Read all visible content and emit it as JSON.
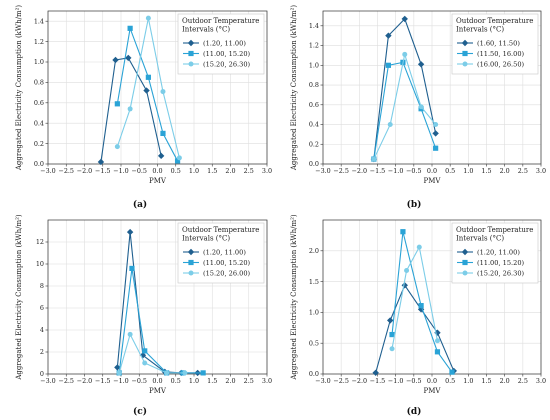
{
  "chart_data": [
    {
      "type": "line",
      "caption": "(a)",
      "xlabel": "PMV",
      "ylabel": "Aggregated Electricity Consumption (kWh/m²)",
      "xlim": [
        -3.0,
        3.0
      ],
      "ylim": [
        0,
        1.5
      ],
      "x_ticks": [
        "−3.0",
        "−2.5",
        "−2.0",
        "−1.5",
        "−1.0",
        "−0.5",
        "0.0",
        "0.5",
        "1.0",
        "1.5",
        "2.0",
        "2.5",
        "3.0"
      ],
      "y_ticks": [
        "0.0",
        "0.2",
        "0.4",
        "0.6",
        "0.8",
        "1.0",
        "1.2",
        "1.4"
      ],
      "grid": true,
      "legend_title": "Outdoor Temperature Intervals (°C)",
      "legend_title_lines": [
        "Outdoor Temperature",
        "Intervals (°C)"
      ],
      "legend_position": "top-right",
      "series": [
        {
          "name": "(1.20, 11.00)",
          "color": "#1f5f8f",
          "marker": "diamond",
          "x": [
            -1.55,
            -1.15,
            -0.8,
            -0.3,
            0.1
          ],
          "y": [
            0.02,
            1.02,
            1.04,
            0.72,
            0.08
          ]
        },
        {
          "name": "(11.00, 15.20)",
          "color": "#2aa3d6",
          "marker": "square",
          "x": [
            -1.1,
            -0.75,
            -0.25,
            0.15,
            0.55
          ],
          "y": [
            0.59,
            1.33,
            0.85,
            0.3,
            0.03
          ]
        },
        {
          "name": "(15.20, 26.30)",
          "color": "#7ccde8",
          "marker": "circle",
          "x": [
            -1.1,
            -0.75,
            -0.25,
            0.15,
            0.6
          ],
          "y": [
            0.17,
            0.54,
            1.43,
            0.71,
            0.06
          ]
        }
      ]
    },
    {
      "type": "line",
      "caption": "(b)",
      "xlabel": "PMV",
      "ylabel": "Aggregated Electricity Consumption (kWh/m²)",
      "xlim": [
        -3.0,
        3.0
      ],
      "ylim": [
        0,
        1.55
      ],
      "x_ticks": [
        "−3.0",
        "−2.5",
        "−2.0",
        "−1.5",
        "−1.0",
        "−0.5",
        "0.0",
        "0.5",
        "1.0",
        "1.5",
        "2.0",
        "2.5",
        "3.0"
      ],
      "y_ticks": [
        "0.0",
        "0.2",
        "0.4",
        "0.6",
        "0.8",
        "1.0",
        "1.2",
        "1.4"
      ],
      "grid": true,
      "legend_title": "Outdoor Temperature Intervals (°C)",
      "legend_title_lines": [
        "Outdoor Temperature",
        "Intervals (°C)"
      ],
      "legend_position": "top-right",
      "series": [
        {
          "name": "(1.60, 11.50)",
          "color": "#1f5f8f",
          "marker": "diamond",
          "x": [
            -1.6,
            -1.2,
            -0.75,
            -0.3,
            0.1
          ],
          "y": [
            0.05,
            1.3,
            1.47,
            1.01,
            0.31
          ]
        },
        {
          "name": "(11.50, 16.00)",
          "color": "#2aa3d6",
          "marker": "square",
          "x": [
            -1.6,
            -1.2,
            -0.8,
            -0.3,
            0.1
          ],
          "y": [
            0.05,
            1.0,
            1.03,
            0.56,
            0.16
          ]
        },
        {
          "name": "(16.00, 26.50)",
          "color": "#7ccde8",
          "marker": "circle",
          "x": [
            -1.6,
            -1.15,
            -0.75,
            -0.3,
            0.1
          ],
          "y": [
            0.05,
            0.4,
            1.11,
            0.58,
            0.4
          ]
        }
      ]
    },
    {
      "type": "line",
      "caption": "(c)",
      "xlabel": "PMV",
      "ylabel": "Aggregated Electricity Consumption (kWh/m²)",
      "xlim": [
        -3.0,
        3.0
      ],
      "ylim": [
        0,
        14
      ],
      "x_ticks": [
        "−3.0",
        "−2.5",
        "−2.0",
        "−1.5",
        "−1.0",
        "−0.5",
        "0.0",
        "0.5",
        "1.0",
        "1.5",
        "2.0",
        "2.5",
        "3.0"
      ],
      "y_ticks": [
        "0",
        "2",
        "4",
        "6",
        "8",
        "10",
        "12"
      ],
      "grid": true,
      "legend_title": "Outdoor Temperature Intervals (°C)",
      "legend_title_lines": [
        "Outdoor Temperature",
        "Intervals (°C)"
      ],
      "legend_position": "top-right",
      "series": [
        {
          "name": "(1.20, 11.00)",
          "color": "#1f5f8f",
          "marker": "diamond",
          "x": [
            -1.1,
            -0.75,
            -0.4,
            0.2,
            0.65,
            1.1
          ],
          "y": [
            0.6,
            12.9,
            1.7,
            0.2,
            0.1,
            0.1
          ]
        },
        {
          "name": "(11.00, 15.20)",
          "color": "#2aa3d6",
          "marker": "square",
          "x": [
            -1.05,
            -0.7,
            -0.35,
            0.25,
            0.7,
            1.25
          ],
          "y": [
            0.1,
            9.6,
            2.1,
            0.1,
            0.1,
            0.1
          ]
        },
        {
          "name": "(15.20, 26.00)",
          "color": "#7ccde8",
          "marker": "circle",
          "x": [
            -1.05,
            -0.75,
            -0.35,
            0.25,
            0.75
          ],
          "y": [
            0.1,
            3.6,
            1.0,
            0.1,
            0.1
          ]
        }
      ]
    },
    {
      "type": "line",
      "caption": "(d)",
      "xlabel": "PMV",
      "ylabel": "Aggregated Electricity Consumption (kWh/m²)",
      "xlim": [
        -3.0,
        3.0
      ],
      "ylim": [
        0,
        2.5
      ],
      "x_ticks": [
        "−3.0",
        "−2.5",
        "−2.0",
        "−1.5",
        "−1.0",
        "−0.5",
        "0.0",
        "0.5",
        "1.0",
        "1.5",
        "2.0",
        "2.5",
        "3.0"
      ],
      "y_ticks": [
        "0.0",
        "0.5",
        "1.0",
        "1.5",
        "2.0"
      ],
      "grid": true,
      "legend_title": "Outdoor Temperature Intervals (°C)",
      "legend_title_lines": [
        "Outdoor Temperature",
        "Intervals (°C)"
      ],
      "legend_position": "top-right",
      "series": [
        {
          "name": "(1.20, 11.00)",
          "color": "#1f5f8f",
          "marker": "diamond",
          "x": [
            -1.55,
            -1.15,
            -0.75,
            -0.3,
            0.15,
            0.6
          ],
          "y": [
            0.02,
            0.87,
            1.44,
            1.05,
            0.67,
            0.05
          ]
        },
        {
          "name": "(11.00, 15.20)",
          "color": "#2aa3d6",
          "marker": "square",
          "x": [
            -1.1,
            -0.8,
            -0.3,
            0.15,
            0.55
          ],
          "y": [
            0.64,
            2.31,
            1.11,
            0.36,
            0.03
          ]
        },
        {
          "name": "(15.20, 26.30)",
          "color": "#7ccde8",
          "marker": "circle",
          "x": [
            -1.1,
            -0.7,
            -0.35,
            0.15
          ],
          "y": [
            0.41,
            1.68,
            2.06,
            0.54
          ]
        }
      ]
    }
  ]
}
